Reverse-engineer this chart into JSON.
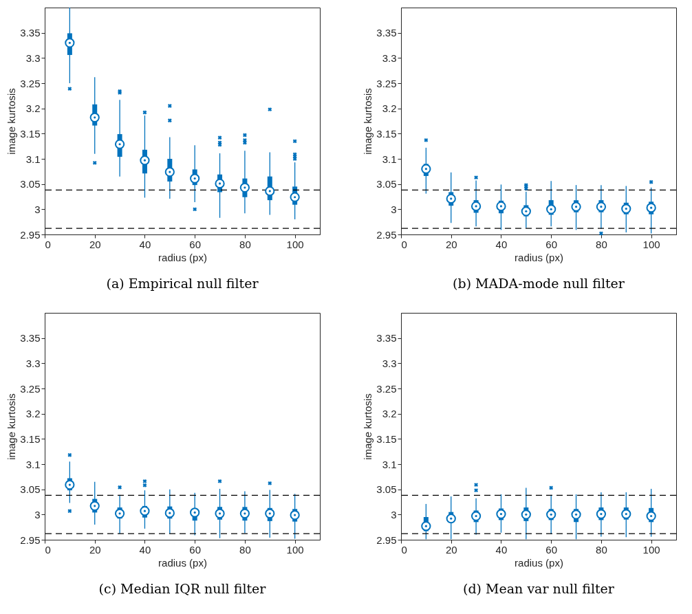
{
  "chart_data": [
    {
      "type": "box",
      "title": "(a) Empirical null filter",
      "xlabel": "radius (px)",
      "ylabel": "image kurtosis",
      "x": [
        10,
        20,
        30,
        40,
        50,
        60,
        70,
        80,
        90,
        100
      ],
      "xlim": [
        0,
        110
      ],
      "xticks": [
        0,
        20,
        40,
        60,
        80,
        100
      ],
      "ylim": [
        2.95,
        3.4
      ],
      "yticks": [
        2.95,
        3,
        3.05,
        3.1,
        3.15,
        3.2,
        3.25,
        3.3,
        3.35
      ],
      "ref_lines": [
        {
          "axis": "y",
          "value": 3.038,
          "color": "#000000",
          "line_style": "dashed"
        },
        {
          "axis": "y",
          "value": 2.962,
          "color": "#000000",
          "line_style": "dashed"
        }
      ],
      "series": [
        {
          "color": "#0072bd",
          "boxes": [
            {
              "low": 3.25,
              "q1": 3.306,
              "median": 3.33,
              "q3": 3.349,
              "high": 3.4,
              "outliers": [
                3.239
              ]
            },
            {
              "low": 3.11,
              "q1": 3.166,
              "median": 3.182,
              "q3": 3.208,
              "high": 3.262,
              "outliers": [
                3.092
              ]
            },
            {
              "low": 3.065,
              "q1": 3.104,
              "median": 3.129,
              "q3": 3.149,
              "high": 3.217,
              "outliers": [
                3.234,
                3.231
              ]
            },
            {
              "low": 3.023,
              "q1": 3.071,
              "median": 3.097,
              "q3": 3.118,
              "high": 3.186,
              "outliers": [
                3.192
              ]
            },
            {
              "low": 3.021,
              "q1": 3.055,
              "median": 3.074,
              "q3": 3.1,
              "high": 3.143,
              "outliers": [
                3.205,
                3.176
              ]
            },
            {
              "low": 3.014,
              "q1": 3.048,
              "median": 3.061,
              "q3": 3.079,
              "high": 3.127,
              "outliers": [
                3.0
              ]
            },
            {
              "low": 2.983,
              "q1": 3.034,
              "median": 3.051,
              "q3": 3.069,
              "high": 3.111,
              "outliers": [
                3.142,
                3.132,
                3.128
              ]
            },
            {
              "low": 2.992,
              "q1": 3.024,
              "median": 3.043,
              "q3": 3.061,
              "high": 3.116,
              "outliers": [
                3.147,
                3.137,
                3.132
              ]
            },
            {
              "low": 2.989,
              "q1": 3.018,
              "median": 3.036,
              "q3": 3.065,
              "high": 3.113,
              "outliers": [
                3.198
              ]
            },
            {
              "low": 2.98,
              "q1": 3.009,
              "median": 3.024,
              "q3": 3.045,
              "high": 3.093,
              "outliers": [
                3.135,
                3.109,
                3.105,
                3.1
              ]
            }
          ]
        }
      ]
    },
    {
      "type": "box",
      "title": "(b) MADA-mode null filter",
      "xlabel": "radius (px)",
      "ylabel": "image kurtosis",
      "x": [
        10,
        20,
        30,
        40,
        50,
        60,
        70,
        80,
        90,
        100
      ],
      "xlim": [
        0,
        110
      ],
      "xticks": [
        0,
        20,
        40,
        60,
        80,
        100
      ],
      "ylim": [
        2.95,
        3.4
      ],
      "yticks": [
        2.95,
        3,
        3.05,
        3.1,
        3.15,
        3.2,
        3.25,
        3.3,
        3.35
      ],
      "ref_lines": [
        {
          "axis": "y",
          "value": 3.038,
          "color": "#000000",
          "line_style": "dashed"
        },
        {
          "axis": "y",
          "value": 2.962,
          "color": "#000000",
          "line_style": "dashed"
        }
      ],
      "series": [
        {
          "color": "#0072bd",
          "boxes": [
            {
              "low": 3.031,
              "q1": 3.066,
              "median": 3.08,
              "q3": 3.09,
              "high": 3.122,
              "outliers": [
                3.137
              ]
            },
            {
              "low": 2.973,
              "q1": 3.007,
              "median": 3.021,
              "q3": 3.034,
              "high": 3.073
            },
            {
              "low": 2.966,
              "q1": 2.993,
              "median": 3.006,
              "q3": 3.018,
              "high": 3.057,
              "outliers": [
                3.063
              ]
            },
            {
              "low": 2.959,
              "q1": 2.992,
              "median": 3.006,
              "q3": 3.017,
              "high": 3.049
            },
            {
              "low": 2.963,
              "q1": 2.986,
              "median": 2.996,
              "q3": 3.008,
              "high": 3.035,
              "outliers": [
                3.048,
                3.045,
                3.041
              ]
            },
            {
              "low": 2.966,
              "q1": 2.989,
              "median": 3.0,
              "q3": 3.018,
              "high": 3.056
            },
            {
              "low": 2.959,
              "q1": 2.994,
              "median": 3.005,
              "q3": 3.018,
              "high": 3.048
            },
            {
              "low": 2.961,
              "q1": 2.994,
              "median": 3.005,
              "q3": 3.018,
              "high": 3.048,
              "outliers": [
                2.952
              ]
            },
            {
              "low": 2.954,
              "q1": 2.99,
              "median": 3.001,
              "q3": 3.013,
              "high": 3.046
            },
            {
              "low": 2.952,
              "q1": 2.99,
              "median": 3.003,
              "q3": 3.015,
              "high": 3.043,
              "outliers": [
                3.054
              ]
            }
          ]
        }
      ]
    },
    {
      "type": "box",
      "title": "(c) Median IQR null filter",
      "xlabel": "radius (px)",
      "ylabel": "image kurtosis",
      "x": [
        10,
        20,
        30,
        40,
        50,
        60,
        70,
        80,
        90,
        100
      ],
      "xlim": [
        0,
        110
      ],
      "xticks": [
        0,
        20,
        40,
        60,
        80,
        100
      ],
      "ylim": [
        2.95,
        3.4
      ],
      "yticks": [
        2.95,
        3,
        3.05,
        3.1,
        3.15,
        3.2,
        3.25,
        3.3,
        3.35
      ],
      "ref_lines": [
        {
          "axis": "y",
          "value": 3.038,
          "color": "#000000",
          "line_style": "dashed"
        },
        {
          "axis": "y",
          "value": 2.962,
          "color": "#000000",
          "line_style": "dashed"
        }
      ],
      "series": [
        {
          "color": "#0072bd",
          "boxes": [
            {
              "low": 3.023,
              "q1": 3.048,
              "median": 3.059,
              "q3": 3.072,
              "high": 3.105,
              "outliers": [
                3.118,
                3.007
              ]
            },
            {
              "low": 2.98,
              "q1": 3.004,
              "median": 3.017,
              "q3": 3.031,
              "high": 3.065
            },
            {
              "low": 2.962,
              "q1": 2.992,
              "median": 3.002,
              "q3": 3.014,
              "high": 3.039,
              "outliers": [
                3.054
              ]
            },
            {
              "low": 2.972,
              "q1": 2.994,
              "median": 3.007,
              "q3": 3.017,
              "high": 3.048,
              "outliers": [
                3.066,
                3.058
              ]
            },
            {
              "low": 2.962,
              "q1": 2.992,
              "median": 3.003,
              "q3": 3.016,
              "high": 3.05
            },
            {
              "low": 2.959,
              "q1": 2.988,
              "median": 3.004,
              "q3": 3.009,
              "high": 3.043
            },
            {
              "low": 2.953,
              "q1": 2.99,
              "median": 3.002,
              "q3": 3.015,
              "high": 3.051,
              "outliers": [
                3.066
              ]
            },
            {
              "low": 2.963,
              "q1": 2.988,
              "median": 3.002,
              "q3": 3.015,
              "high": 3.046
            },
            {
              "low": 2.954,
              "q1": 2.987,
              "median": 3.002,
              "q3": 3.013,
              "high": 3.049,
              "outliers": [
                3.062
              ]
            },
            {
              "low": 2.952,
              "q1": 2.986,
              "median": 2.999,
              "q3": 3.011,
              "high": 3.041
            }
          ]
        }
      ]
    },
    {
      "type": "box",
      "title": "(d) Mean var null filter",
      "xlabel": "radius (px)",
      "ylabel": "image kurtosis",
      "x": [
        10,
        20,
        30,
        40,
        50,
        60,
        70,
        80,
        90,
        100
      ],
      "xlim": [
        0,
        110
      ],
      "xticks": [
        0,
        20,
        40,
        60,
        80,
        100
      ],
      "ylim": [
        2.95,
        3.4
      ],
      "yticks": [
        2.95,
        3,
        3.05,
        3.1,
        3.15,
        3.2,
        3.25,
        3.3,
        3.35
      ],
      "ref_lines": [
        {
          "axis": "y",
          "value": 3.038,
          "color": "#000000",
          "line_style": "dashed"
        },
        {
          "axis": "y",
          "value": 2.962,
          "color": "#000000",
          "line_style": "dashed"
        }
      ],
      "series": [
        {
          "color": "#0072bd",
          "boxes": [
            {
              "low": 2.951,
              "q1": 2.967,
              "median": 2.977,
              "q3": 2.995,
              "high": 3.021
            },
            {
              "low": 2.951,
              "q1": 2.984,
              "median": 2.992,
              "q3": 3.005,
              "high": 3.036
            },
            {
              "low": 2.96,
              "q1": 2.985,
              "median": 2.997,
              "q3": 3.008,
              "high": 3.032,
              "outliers": [
                3.059,
                3.048
              ]
            },
            {
              "low": 2.964,
              "q1": 2.989,
              "median": 3.001,
              "q3": 3.012,
              "high": 3.04
            },
            {
              "low": 2.951,
              "q1": 2.987,
              "median": 3.0,
              "q3": 3.014,
              "high": 3.053
            },
            {
              "low": 2.961,
              "q1": 2.989,
              "median": 3.0,
              "q3": 3.011,
              "high": 3.039,
              "outliers": [
                3.053
              ]
            },
            {
              "low": 2.951,
              "q1": 2.985,
              "median": 3.0,
              "q3": 3.011,
              "high": 3.04
            },
            {
              "low": 2.956,
              "q1": 2.989,
              "median": 3.001,
              "q3": 3.014,
              "high": 3.044
            },
            {
              "low": 2.955,
              "q1": 2.99,
              "median": 3.001,
              "q3": 3.014,
              "high": 3.044
            },
            {
              "low": 2.956,
              "q1": 2.985,
              "median": 2.997,
              "q3": 3.013,
              "high": 3.051
            }
          ]
        }
      ]
    }
  ]
}
